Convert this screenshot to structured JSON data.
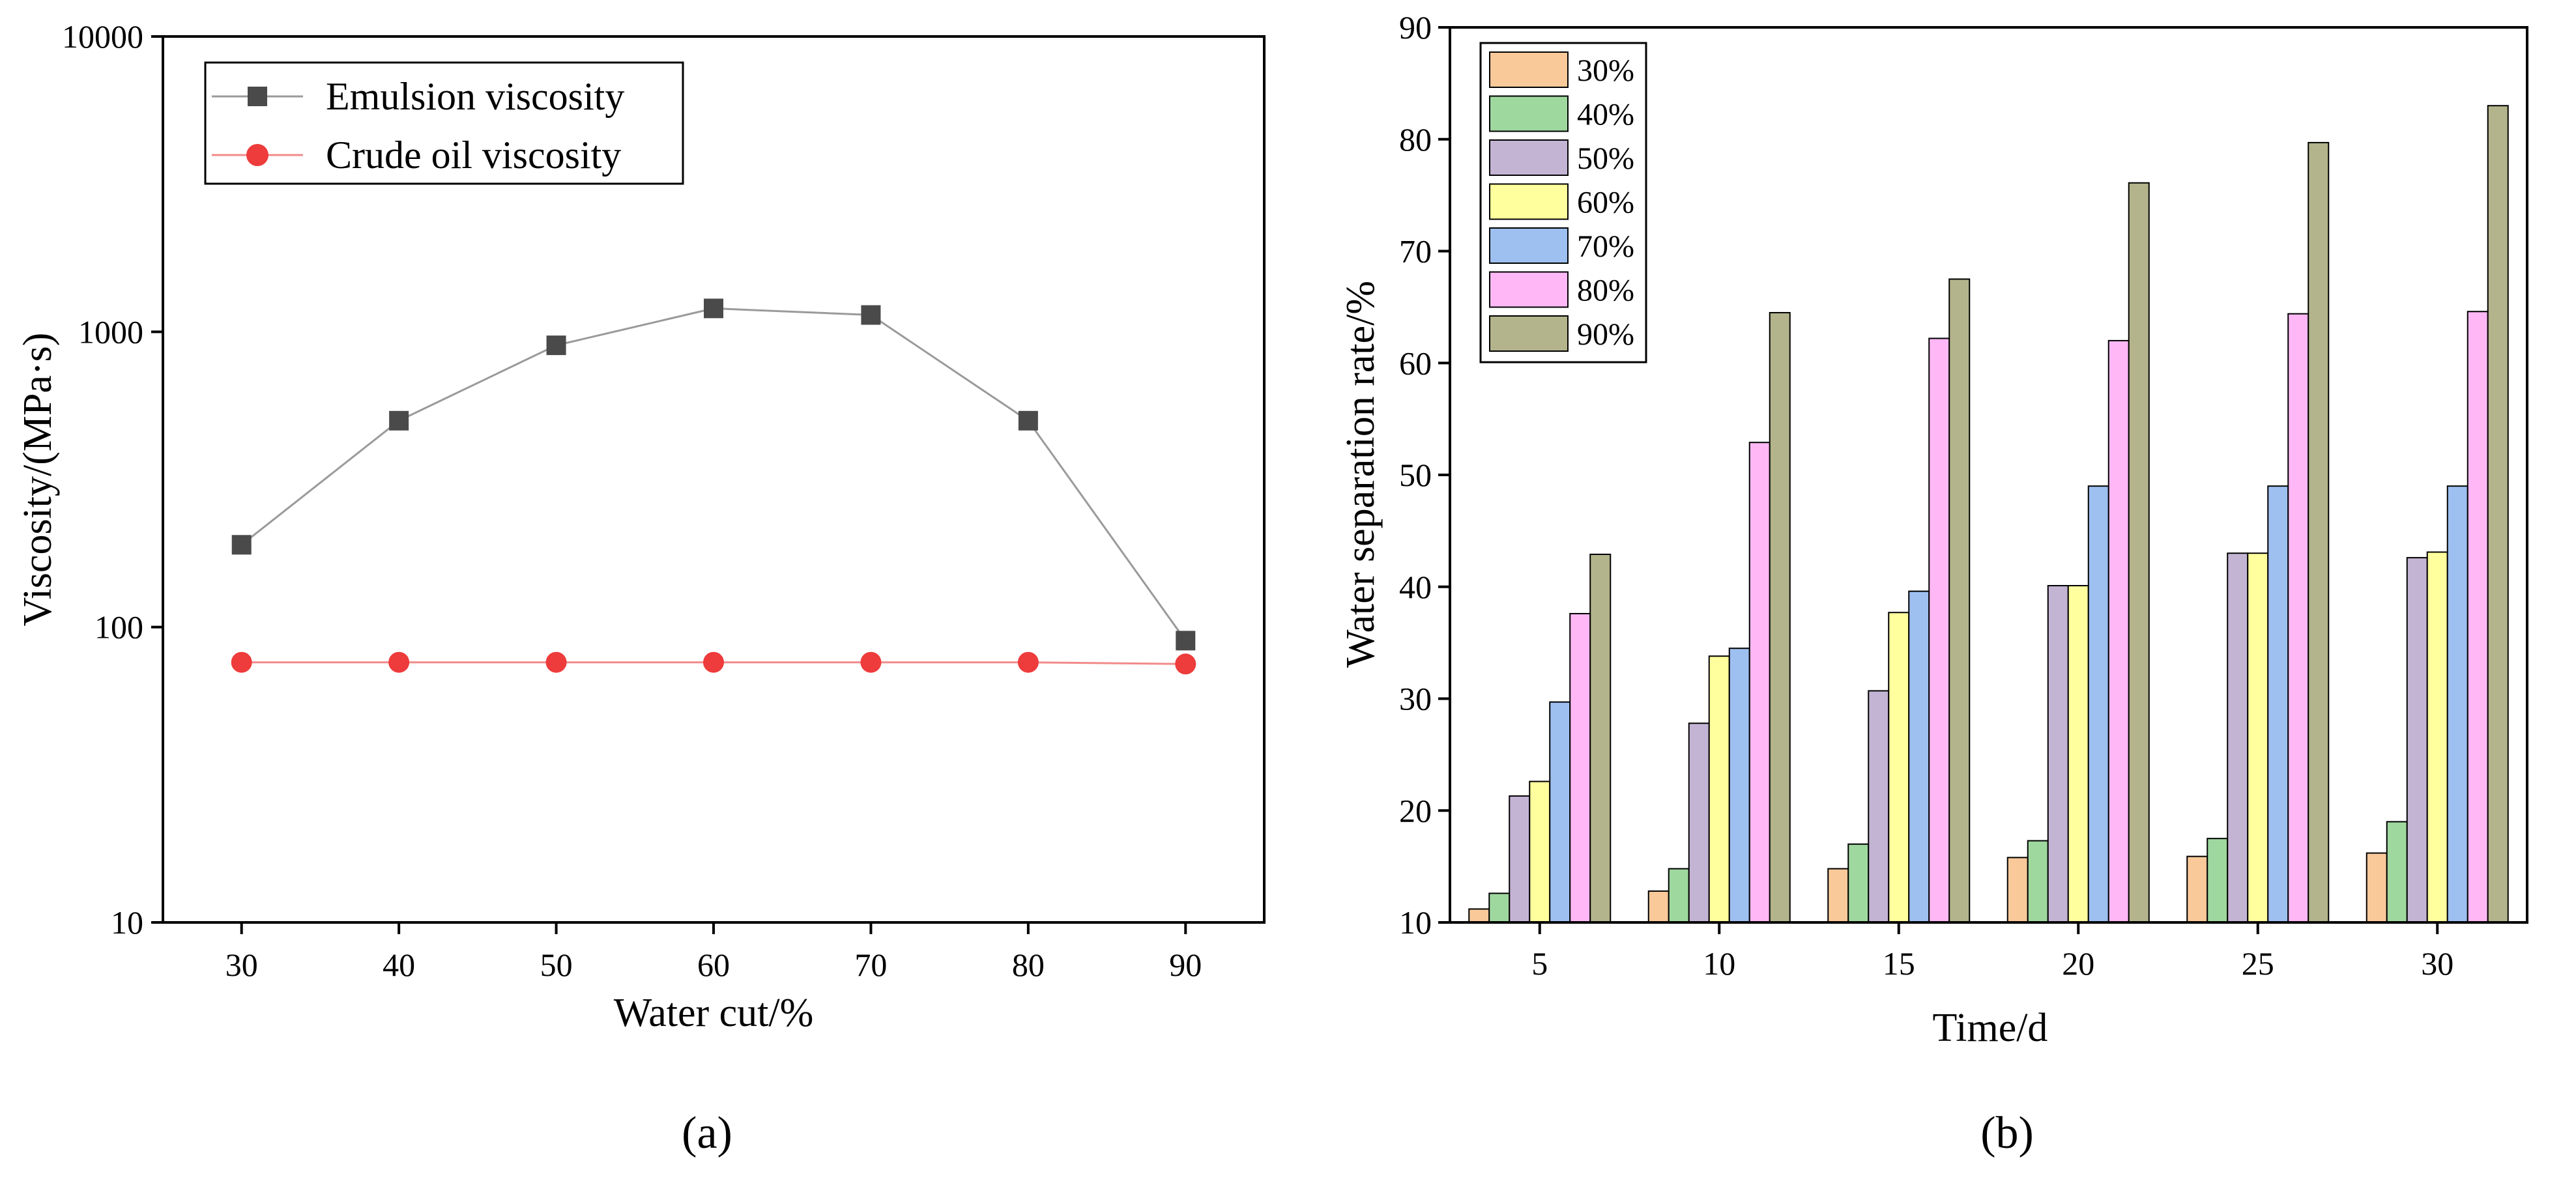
{
  "chart_data": [
    {
      "type": "line",
      "panel_label": "(a)",
      "xlabel": "Water cut/%",
      "ylabel": "Viscosity/(MPa·s)",
      "yscale": "log",
      "ylim": [
        10,
        10000
      ],
      "xlim": [
        25,
        95
      ],
      "x_ticks": [
        30,
        40,
        50,
        60,
        70,
        80,
        90
      ],
      "y_ticks": [
        10,
        100,
        1000,
        10000
      ],
      "legend_position": "top-left",
      "series": [
        {
          "name": "Emulsion viscosity",
          "marker": "square",
          "color": "#4a4a4a",
          "line_color": "#9a9a9a",
          "x": [
            30,
            40,
            50,
            60,
            70,
            80,
            90
          ],
          "values": [
            190,
            500,
            900,
            1200,
            1140,
            500,
            90
          ]
        },
        {
          "name": "Crude oil viscosity",
          "marker": "circle",
          "color": "#ee3b3b",
          "line_color": "#f28a8a",
          "x": [
            30,
            40,
            50,
            60,
            70,
            80,
            90
          ],
          "values": [
            76,
            76,
            76,
            76,
            76,
            76,
            75
          ]
        }
      ]
    },
    {
      "type": "bar",
      "panel_label": "(b)",
      "xlabel": "Time/d",
      "ylabel": "Water separation rate/%",
      "ylim": [
        10,
        90
      ],
      "y_ticks": [
        10,
        20,
        30,
        40,
        50,
        60,
        70,
        80,
        90
      ],
      "categories": [
        "5",
        "10",
        "15",
        "20",
        "25",
        "30"
      ],
      "legend_position": "top-left",
      "series": [
        {
          "name": "30%",
          "color": "#f9c99a",
          "values": [
            11.2,
            12.8,
            14.8,
            15.8,
            15.9,
            16.2
          ]
        },
        {
          "name": "40%",
          "color": "#9fd89f",
          "values": [
            12.6,
            14.8,
            17.0,
            17.3,
            17.5,
            19.0
          ]
        },
        {
          "name": "50%",
          "color": "#c4b4d4",
          "values": [
            21.3,
            27.8,
            30.7,
            40.1,
            43.0,
            42.6
          ]
        },
        {
          "name": "60%",
          "color": "#ffff9e",
          "values": [
            22.6,
            33.8,
            37.7,
            40.1,
            43.0,
            43.1
          ]
        },
        {
          "name": "70%",
          "color": "#9ec0f0",
          "values": [
            29.7,
            34.5,
            39.6,
            49.0,
            49.0,
            49.0
          ]
        },
        {
          "name": "80%",
          "color": "#ffb8f5",
          "values": [
            37.6,
            52.9,
            62.2,
            62.0,
            64.4,
            64.6
          ]
        },
        {
          "name": "90%",
          "color": "#b4b48c",
          "values": [
            42.9,
            64.5,
            67.5,
            76.1,
            79.7,
            83.0
          ]
        }
      ]
    }
  ]
}
